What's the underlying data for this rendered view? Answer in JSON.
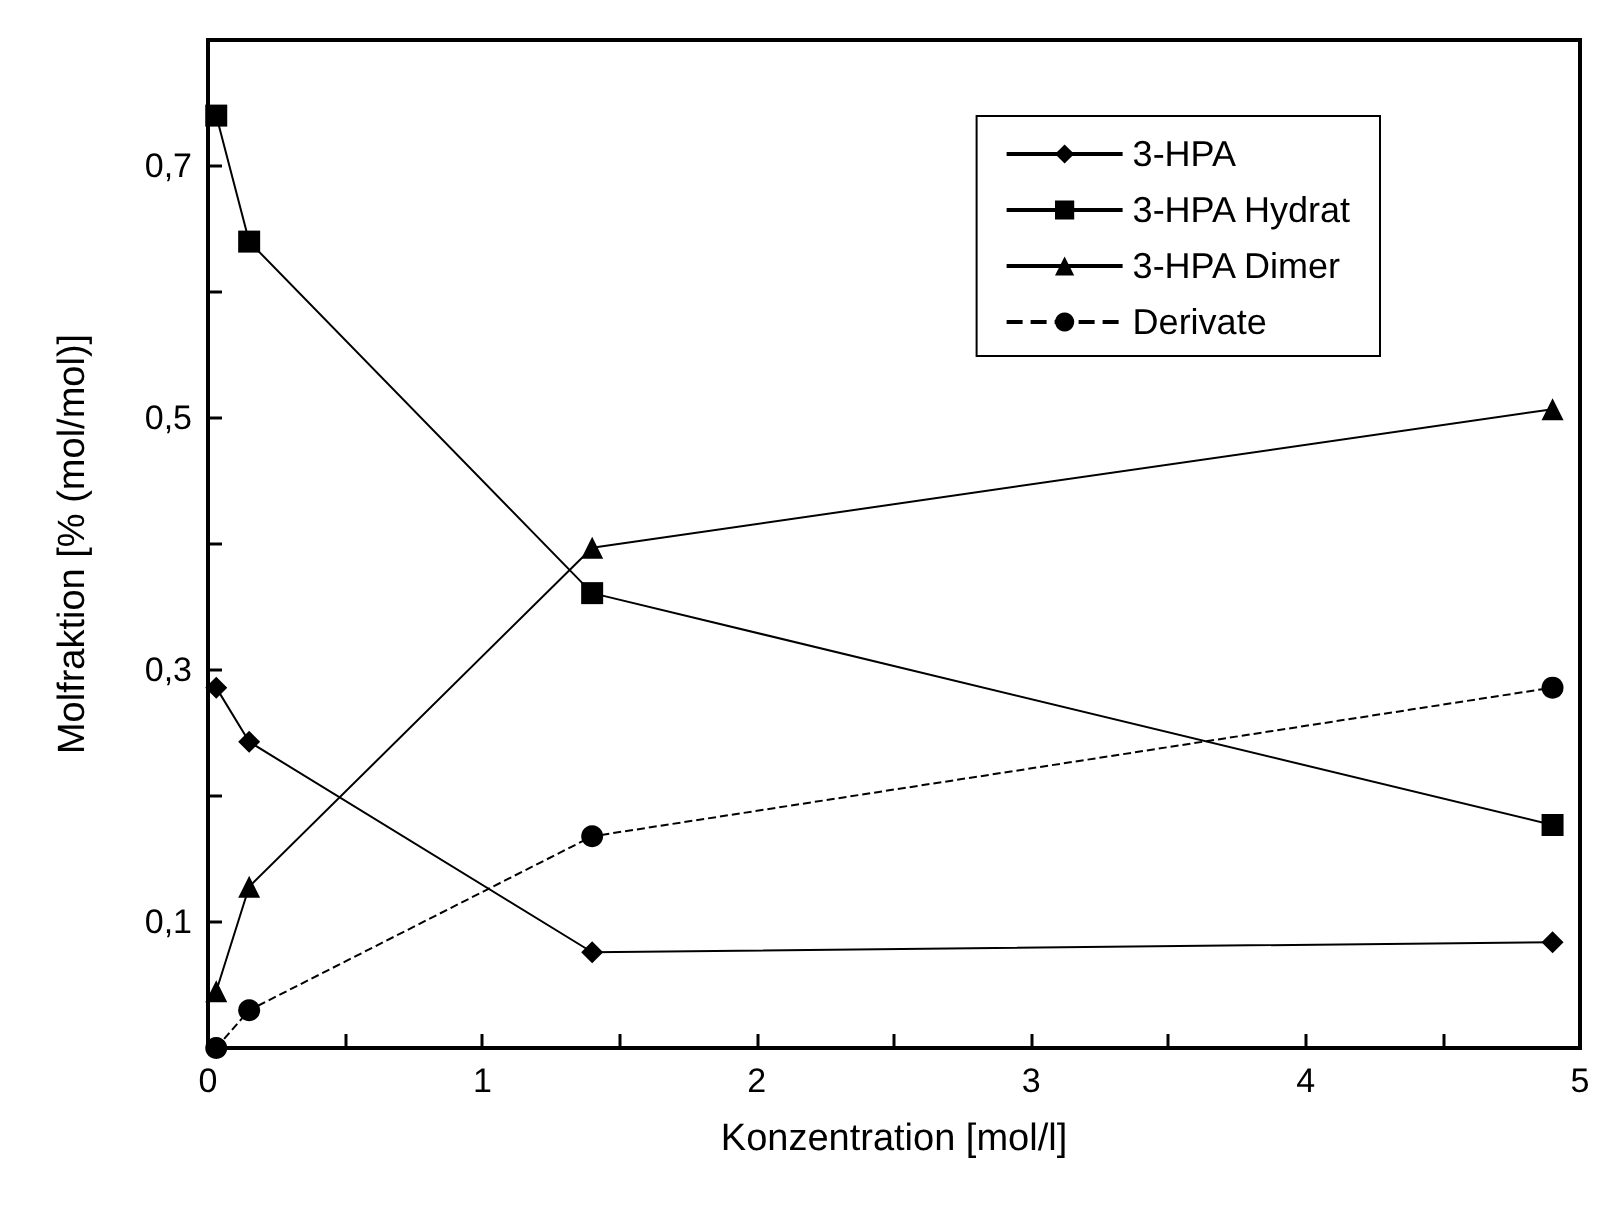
{
  "chart_data": {
    "type": "line",
    "xlabel": "Konzentration [mol/l]",
    "ylabel": "Molfraktion [% (mol/mol)]",
    "x": [
      0.03,
      0.15,
      1.4,
      4.9
    ],
    "series": [
      {
        "name": "3-HPA",
        "color": "#000000",
        "marker": "diamond",
        "line_style": "solid",
        "values": [
          0.286,
          0.243,
          0.076,
          0.084
        ]
      },
      {
        "name": "3-HPA Hydrat",
        "color": "#000000",
        "marker": "square",
        "line_style": "solid",
        "values": [
          0.74,
          0.64,
          0.361,
          0.177
        ]
      },
      {
        "name": "3-HPA Dimer",
        "color": "#000000",
        "marker": "triangle",
        "line_style": "solid",
        "values": [
          0.045,
          0.128,
          0.397,
          0.507
        ]
      },
      {
        "name": "Derivate",
        "color": "#000000",
        "marker": "circle",
        "line_style": "dashed",
        "values": [
          0.0,
          0.03,
          0.168,
          0.286
        ]
      }
    ],
    "xlim": [
      0,
      5
    ],
    "xticks": [
      0,
      {
        "value": 0.5,
        "label": null
      },
      1,
      {
        "value": 1.5,
        "label": null
      },
      2,
      {
        "value": 2.5,
        "label": null
      },
      3,
      {
        "value": 3.5,
        "label": null
      },
      4,
      {
        "value": 4.5,
        "label": null
      },
      5
    ],
    "ylim": [
      0,
      0.8
    ],
    "yticks": [
      {
        "value": 0.1,
        "label": "0,1"
      },
      {
        "value": 0.2,
        "label": null
      },
      {
        "value": 0.3,
        "label": "0,3"
      },
      {
        "value": 0.4,
        "label": null
      },
      {
        "value": 0.5,
        "label": "0,5"
      },
      {
        "value": 0.6,
        "label": null
      },
      {
        "value": 0.7,
        "label": "0,7"
      }
    ],
    "grid": false,
    "legend": "top right"
  }
}
